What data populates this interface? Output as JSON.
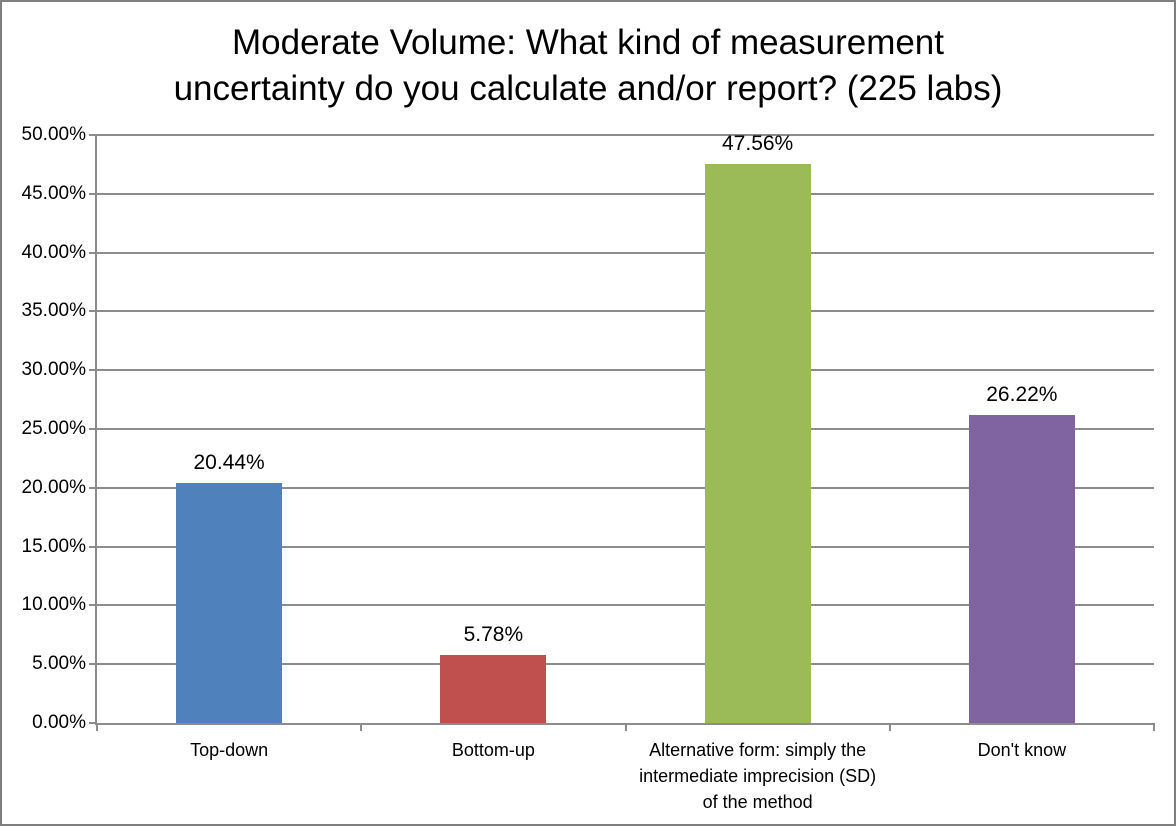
{
  "chart_data": {
    "type": "bar",
    "title": "Moderate Volume: What kind of measurement uncertainty do you calculate and/or report? (225 labs)",
    "title_lines": [
      "Moderate Volume: What kind of measurement",
      "uncertainty do you calculate and/or report? (225 labs)"
    ],
    "categories": [
      "Top-down",
      "Bottom-up",
      "Alternative form: simply the intermediate imprecision (SD) of the method",
      "Don't know"
    ],
    "values": [
      20.44,
      5.78,
      47.56,
      26.22
    ],
    "value_labels": [
      "20.44%",
      "5.78%",
      "47.56%",
      "26.22%"
    ],
    "bar_colors": [
      "#4F81BD",
      "#C0504D",
      "#9BBB59",
      "#8064A2"
    ],
    "xlabel": "",
    "ylabel": "",
    "ylim": [
      0,
      50
    ],
    "ytick_step": 5,
    "ytick_labels": [
      "0.00%",
      "5.00%",
      "10.00%",
      "15.00%",
      "20.00%",
      "25.00%",
      "30.00%",
      "35.00%",
      "40.00%",
      "45.00%",
      "50.00%"
    ],
    "grid": true,
    "legend": null,
    "axis_color": "#8C8C8C",
    "gridline_color": "#8C8C8C",
    "background_color": "#FFFFFF",
    "border_color": "#7F7F7F"
  }
}
